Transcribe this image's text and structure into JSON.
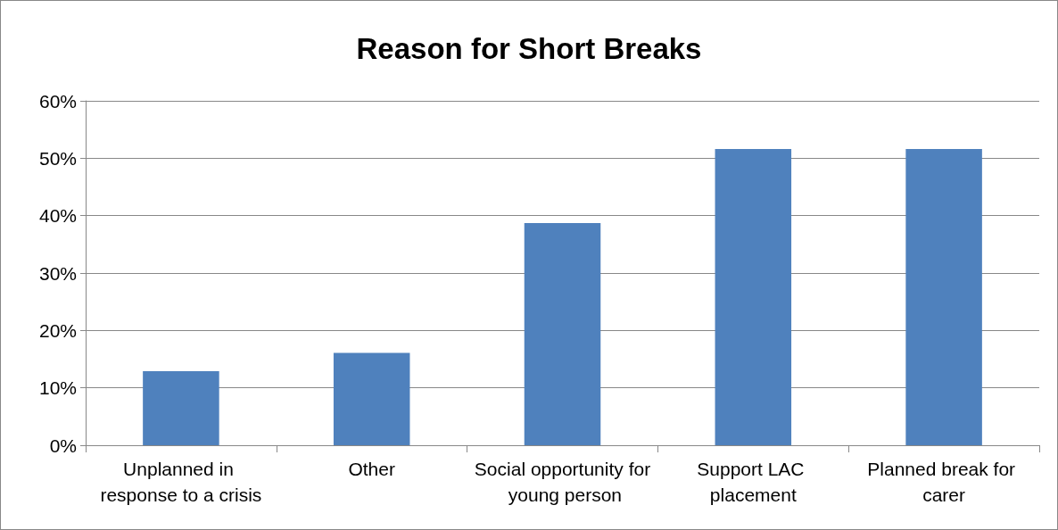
{
  "chart_data": {
    "type": "bar",
    "title": "Reason for Short Breaks",
    "categories": [
      "Unplanned in response to a crisis",
      "Other",
      "Social opportunity for young person",
      "Support LAC placement",
      "Planned break for carer"
    ],
    "values": [
      12.9,
      16.1,
      38.7,
      51.6,
      51.6
    ],
    "color": "#4f81bd",
    "ylim": [
      0,
      60
    ],
    "yticks": [
      {
        "value": 0,
        "label": "0%"
      },
      {
        "value": 10,
        "label": "10%"
      },
      {
        "value": 20,
        "label": "20%"
      },
      {
        "value": 30,
        "label": "30%"
      },
      {
        "value": 40,
        "label": "40%"
      },
      {
        "value": 50,
        "label": "50%"
      },
      {
        "value": 60,
        "label": "60%"
      }
    ],
    "grid": "y"
  }
}
